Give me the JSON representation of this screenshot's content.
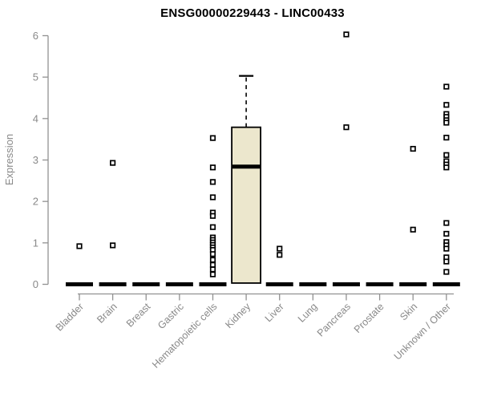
{
  "chart_data": {
    "type": "boxplot",
    "title": "ENSG00000229443 - LINC00433",
    "xlabel": "",
    "ylabel": "Expression",
    "ylim": [
      0,
      6
    ],
    "yticks": [
      0,
      1,
      2,
      3,
      4,
      5,
      6
    ],
    "grid": false,
    "legend": null,
    "categories": [
      "Bladder",
      "Brain",
      "Breast",
      "Gastric",
      "Hematopoietic cells",
      "Kidney",
      "Liver",
      "Lung",
      "Pancreas",
      "Prostate",
      "Skin",
      "Unknown / Other"
    ],
    "boxes": [
      {
        "category": "Bladder",
        "type": "collapsed",
        "median": 0,
        "outliers": [
          0.92
        ]
      },
      {
        "category": "Brain",
        "type": "collapsed",
        "median": 0,
        "outliers": [
          2.93,
          0.94
        ]
      },
      {
        "category": "Breast",
        "type": "collapsed",
        "median": 0,
        "outliers": []
      },
      {
        "category": "Gastric",
        "type": "collapsed",
        "median": 0,
        "outliers": []
      },
      {
        "category": "Hematopoietic cells",
        "type": "collapsed",
        "median": 0,
        "outliers": [
          3.53,
          2.82,
          2.47,
          2.1,
          1.73,
          1.65,
          1.38,
          1.13,
          1.07,
          1.01,
          0.95,
          0.89,
          0.83,
          0.73,
          0.59,
          0.47,
          0.36,
          0.24
        ]
      },
      {
        "category": "Kidney",
        "type": "box",
        "q1": 0.03,
        "median": 2.84,
        "q3": 3.79,
        "whisker_low": 0.03,
        "whisker_high": 5.03,
        "outliers": []
      },
      {
        "category": "Liver",
        "type": "collapsed",
        "median": 0,
        "outliers": [
          0.86,
          0.71
        ]
      },
      {
        "category": "Lung",
        "type": "collapsed",
        "median": 0,
        "outliers": []
      },
      {
        "category": "Pancreas",
        "type": "collapsed",
        "median": 0,
        "outliers": [
          6.03,
          3.79
        ]
      },
      {
        "category": "Prostate",
        "type": "collapsed",
        "median": 0,
        "outliers": []
      },
      {
        "category": "Skin",
        "type": "collapsed",
        "median": 0,
        "outliers": [
          3.27,
          1.32
        ]
      },
      {
        "category": "Unknown / Other",
        "type": "collapsed",
        "median": 0,
        "outliers": [
          4.77,
          4.33,
          4.11,
          4.04,
          3.96,
          3.9,
          3.54,
          3.12,
          2.97,
          2.89,
          2.82,
          1.48,
          1.22,
          1.02,
          0.94,
          0.86,
          0.65,
          0.55,
          0.3
        ]
      }
    ],
    "colors": {
      "title": "#000000",
      "axis": "#919191",
      "tick_text": "#898989",
      "box_fill": "#ece7cd",
      "box_stroke": "#000000",
      "median": "#000000",
      "outlier_stroke": "#000000",
      "background": "#ffffff"
    }
  }
}
